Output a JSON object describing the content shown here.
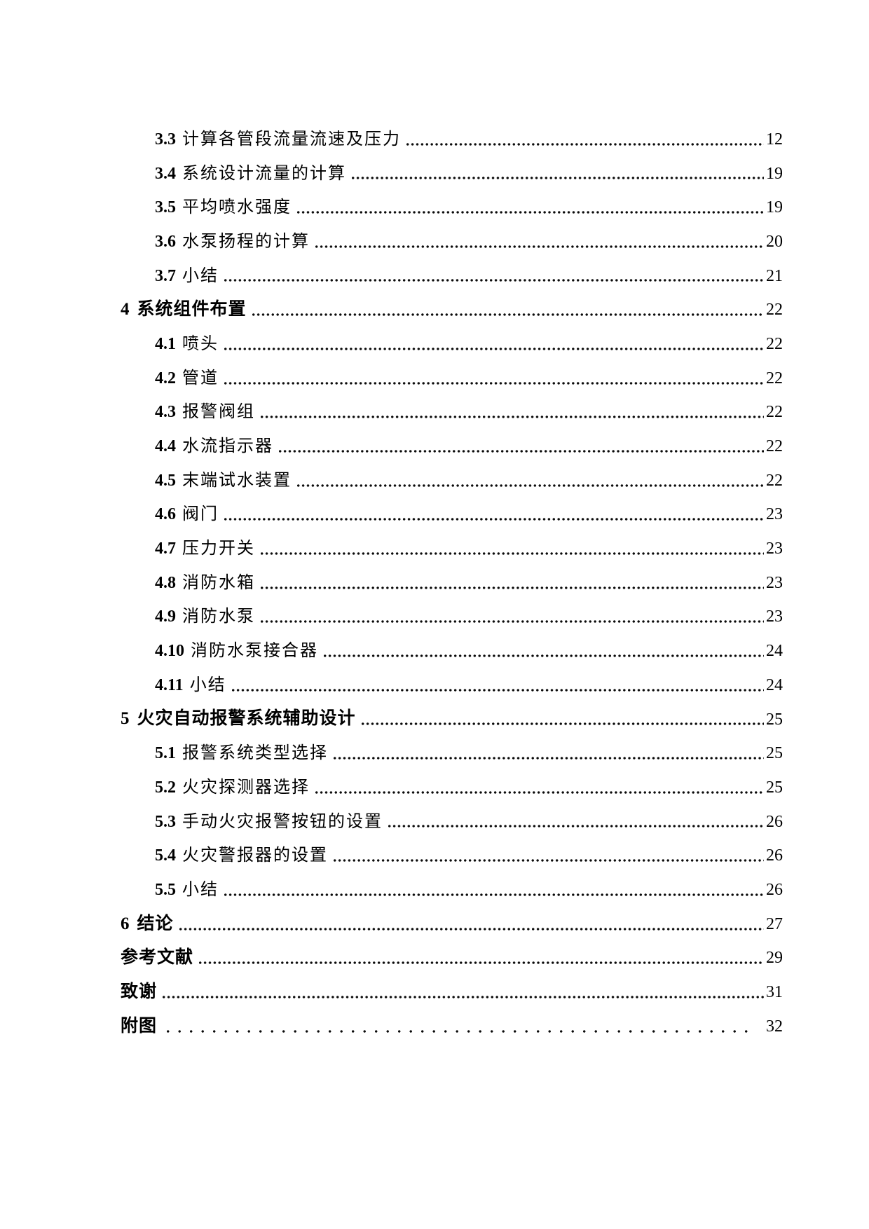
{
  "toc": {
    "entries": [
      {
        "num": "3.3",
        "title": "计算各管段流量流速及压力",
        "page": "12",
        "level": 2
      },
      {
        "num": "3.4",
        "title": "系统设计流量的计算",
        "page": "19",
        "level": 2
      },
      {
        "num": "3.5",
        "title": "平均喷水强度",
        "page": "19",
        "level": 2
      },
      {
        "num": "3.6",
        "title": "水泵扬程的计算",
        "page": "20",
        "level": 2
      },
      {
        "num": "3.7",
        "title": "小结",
        "page": "21",
        "level": 2
      },
      {
        "num": "4",
        "title": "系统组件布置",
        "page": "22",
        "level": 1
      },
      {
        "num": "4.1",
        "title": "喷头",
        "page": "22",
        "level": 2
      },
      {
        "num": "4.2",
        "title": "管道",
        "page": "22",
        "level": 2
      },
      {
        "num": "4.3",
        "title": "报警阀组",
        "page": "22",
        "level": 2
      },
      {
        "num": "4.4",
        "title": "水流指示器",
        "page": "22",
        "level": 2
      },
      {
        "num": "4.5",
        "title": "末端试水装置",
        "page": "22",
        "level": 2
      },
      {
        "num": "4.6",
        "title": "阀门",
        "page": "23",
        "level": 2
      },
      {
        "num": "4.7",
        "title": "压力开关",
        "page": "23",
        "level": 2
      },
      {
        "num": "4.8",
        "title": "消防水箱",
        "page": "23",
        "level": 2
      },
      {
        "num": "4.9",
        "title": "消防水泵",
        "page": "23",
        "level": 2
      },
      {
        "num": "4.10",
        "title": "消防水泵接合器",
        "page": "24",
        "level": 2
      },
      {
        "num": "4.11",
        "title": "小结",
        "page": "24",
        "level": 2
      },
      {
        "num": "5",
        "title": "火灾自动报警系统辅助设计",
        "page": "25",
        "level": 1
      },
      {
        "num": "5.1",
        "title": "报警系统类型选择",
        "page": "25",
        "level": 2
      },
      {
        "num": "5.2",
        "title": "火灾探测器选择",
        "page": "25",
        "level": 2
      },
      {
        "num": "5.3",
        "title": "手动火灾报警按钮的设置",
        "page": "26",
        "level": 2
      },
      {
        "num": "5.4",
        "title": "火灾警报器的设置",
        "page": "26",
        "level": 2
      },
      {
        "num": "5.5",
        "title": "小结",
        "page": "26",
        "level": 2
      },
      {
        "num": "6",
        "title": "结论",
        "page": "27",
        "level": 1
      },
      {
        "num": "",
        "title": "参考文献",
        "page": "29",
        "level": 1
      },
      {
        "num": "",
        "title": "致谢",
        "page": "31",
        "level": 1
      },
      {
        "num": "",
        "title": "附图",
        "page": "32",
        "level": 1
      }
    ]
  }
}
